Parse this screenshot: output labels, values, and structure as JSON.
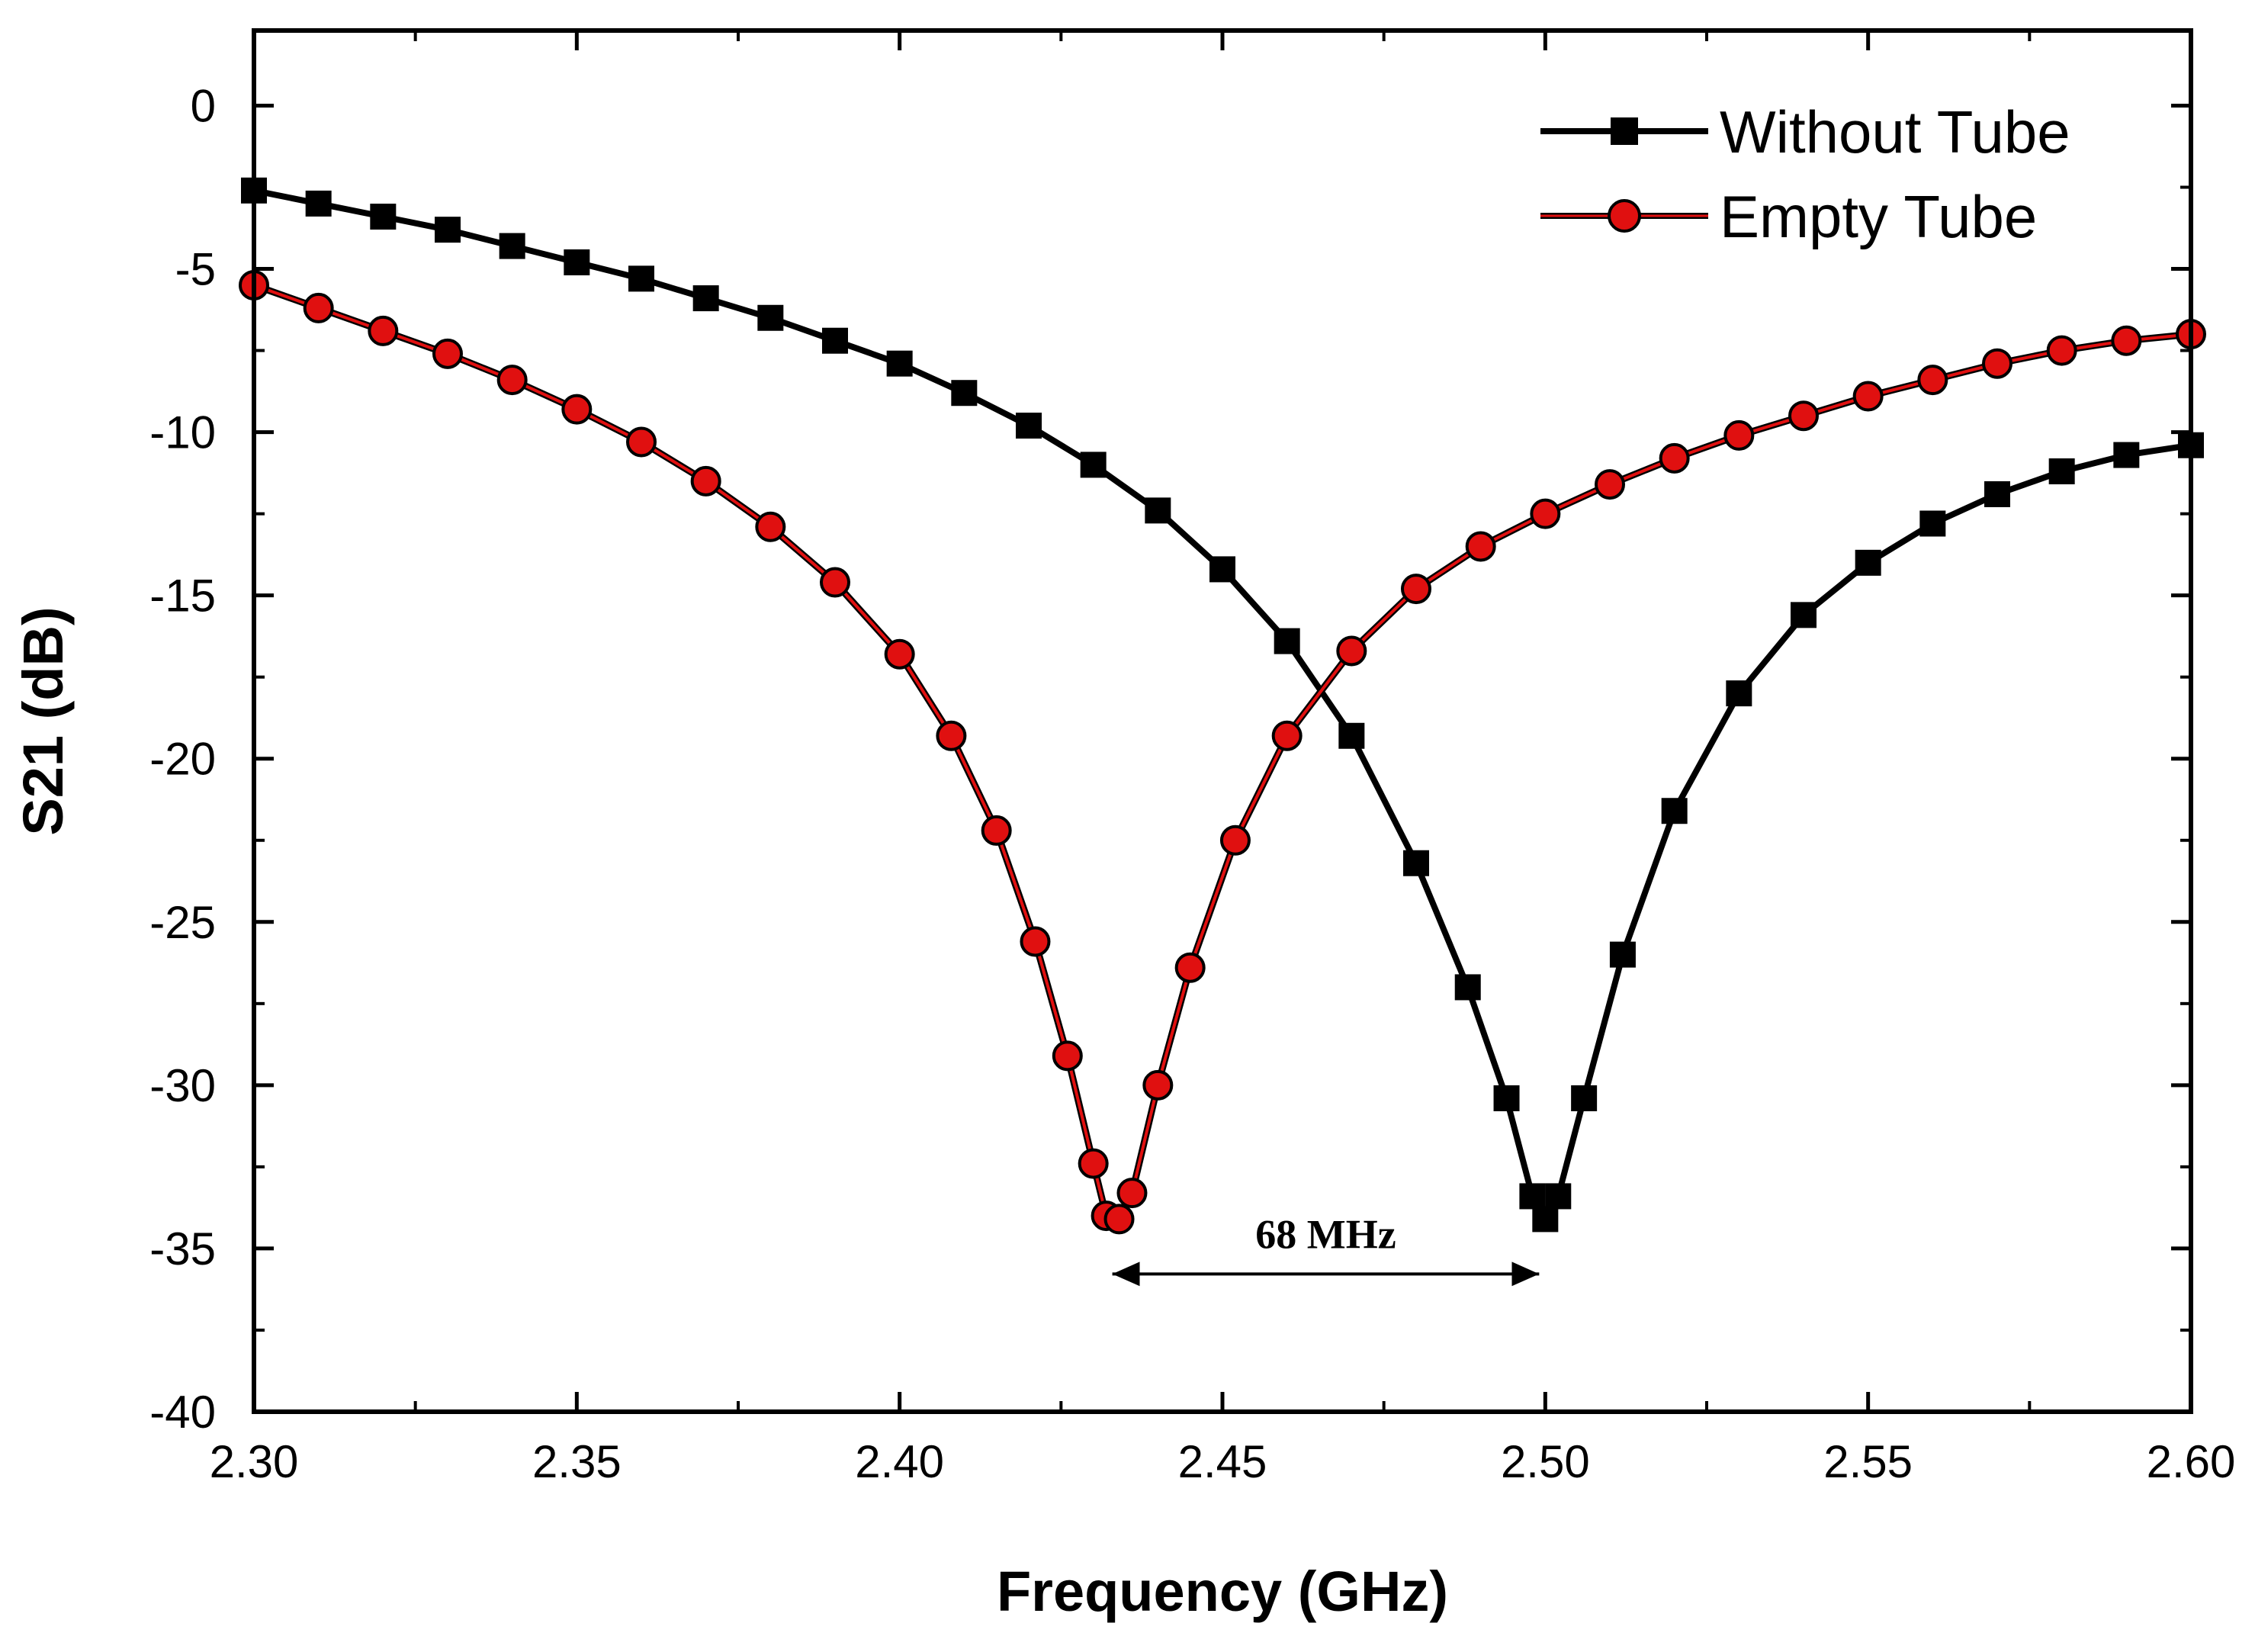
{
  "chart_data": {
    "type": "line",
    "title": "",
    "xlabel": "Frequency (GHz)",
    "ylabel": "S21 (dB)",
    "xlim": [
      2.3,
      2.6
    ],
    "ylim": [
      -40,
      2.3
    ],
    "x_ticks": [
      2.3,
      2.35,
      2.4,
      2.45,
      2.5,
      2.55,
      2.6
    ],
    "x_tick_labels": [
      "2.30",
      "2.35",
      "2.40",
      "2.45",
      "2.50",
      "2.55",
      "2.60"
    ],
    "y_ticks": [
      0,
      -5,
      -10,
      -15,
      -20,
      -25,
      -30,
      -35,
      -40
    ],
    "y_tick_labels": [
      "0",
      "-5",
      "-10",
      "-15",
      "-20",
      "-25",
      "-30",
      "-35",
      "-40"
    ],
    "grid": false,
    "legend_position": "top-right",
    "series": [
      {
        "name": "Without Tube",
        "color": "#000000",
        "marker": "square",
        "points": [
          [
            2.3,
            -2.6
          ],
          [
            2.31,
            -3.0
          ],
          [
            2.32,
            -3.4
          ],
          [
            2.33,
            -3.8
          ],
          [
            2.34,
            -4.3
          ],
          [
            2.35,
            -4.8
          ],
          [
            2.36,
            -5.3
          ],
          [
            2.37,
            -5.9
          ],
          [
            2.38,
            -6.5
          ],
          [
            2.39,
            -7.2
          ],
          [
            2.4,
            -7.9
          ],
          [
            2.41,
            -8.8
          ],
          [
            2.42,
            -9.8
          ],
          [
            2.43,
            -11.0
          ],
          [
            2.44,
            -12.4
          ],
          [
            2.45,
            -14.2
          ],
          [
            2.46,
            -16.4
          ],
          [
            2.47,
            -19.3
          ],
          [
            2.48,
            -23.2
          ],
          [
            2.488,
            -27.0
          ],
          [
            2.494,
            -30.4
          ],
          [
            2.498,
            -33.4
          ],
          [
            2.5,
            -34.1
          ],
          [
            2.502,
            -33.4
          ],
          [
            2.506,
            -30.4
          ],
          [
            2.512,
            -26.0
          ],
          [
            2.52,
            -21.6
          ],
          [
            2.53,
            -18.0
          ],
          [
            2.54,
            -15.6
          ],
          [
            2.55,
            -14.0
          ],
          [
            2.56,
            -12.8
          ],
          [
            2.57,
            -11.9
          ],
          [
            2.58,
            -11.2
          ],
          [
            2.59,
            -10.7
          ],
          [
            2.6,
            -10.4
          ]
        ]
      },
      {
        "name": "Empty Tube",
        "color": "#e01010",
        "marker": "circle",
        "points": [
          [
            2.3,
            -5.5
          ],
          [
            2.31,
            -6.2
          ],
          [
            2.32,
            -6.9
          ],
          [
            2.33,
            -7.6
          ],
          [
            2.34,
            -8.4
          ],
          [
            2.35,
            -9.3
          ],
          [
            2.36,
            -10.3
          ],
          [
            2.37,
            -11.5
          ],
          [
            2.38,
            -12.9
          ],
          [
            2.39,
            -14.6
          ],
          [
            2.4,
            -16.8
          ],
          [
            2.408,
            -19.3
          ],
          [
            2.415,
            -22.2
          ],
          [
            2.421,
            -25.6
          ],
          [
            2.426,
            -29.1
          ],
          [
            2.43,
            -32.4
          ],
          [
            2.432,
            -34.0
          ],
          [
            2.434,
            -34.1
          ],
          [
            2.436,
            -33.3
          ],
          [
            2.44,
            -30.0
          ],
          [
            2.445,
            -26.4
          ],
          [
            2.452,
            -22.5
          ],
          [
            2.46,
            -19.3
          ],
          [
            2.47,
            -16.7
          ],
          [
            2.48,
            -14.8
          ],
          [
            2.49,
            -13.5
          ],
          [
            2.5,
            -12.5
          ],
          [
            2.51,
            -11.6
          ],
          [
            2.52,
            -10.8
          ],
          [
            2.53,
            -10.1
          ],
          [
            2.54,
            -9.5
          ],
          [
            2.55,
            -8.9
          ],
          [
            2.56,
            -8.4
          ],
          [
            2.57,
            -7.9
          ],
          [
            2.58,
            -7.5
          ],
          [
            2.59,
            -7.2
          ],
          [
            2.6,
            -7.0
          ]
        ]
      }
    ],
    "annotations": [
      {
        "text": "68 MHz",
        "x_start": 2.432,
        "x_end": 2.5,
        "y": -35.5
      }
    ]
  }
}
